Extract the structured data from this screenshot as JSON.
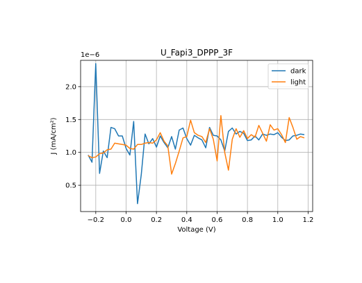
{
  "chart_data": {
    "type": "line",
    "title": "U_Fapi3_DPPP_3F",
    "xlabel": "Voltage (V)",
    "ylabel": "J (mA/cm²)",
    "offset_label": "1e−6",
    "xlim": [
      -0.3,
      1.23
    ],
    "ylim": [
      1e-07,
      2.4e-06
    ],
    "xticks": [
      -0.2,
      0.0,
      0.2,
      0.4,
      0.6,
      0.8,
      1.0,
      1.2
    ],
    "xtick_labels": [
      "−0.2",
      "0.0",
      "0.2",
      "0.4",
      "0.6",
      "0.8",
      "1.0",
      "1.2"
    ],
    "yticks": [
      5e-07,
      1e-06,
      1.5e-06,
      2e-06
    ],
    "ytick_labels": [
      "0.5",
      "1.0",
      "1.5",
      "2.0"
    ],
    "grid": true,
    "legend_position": "top-right",
    "series": [
      {
        "name": "dark",
        "color": "#1f77b4",
        "x": [
          -0.25,
          -0.225,
          -0.2,
          -0.175,
          -0.15,
          -0.125,
          -0.1,
          -0.075,
          -0.05,
          -0.025,
          0.0,
          0.025,
          0.05,
          0.075,
          0.1,
          0.125,
          0.15,
          0.175,
          0.2,
          0.225,
          0.25,
          0.275,
          0.3,
          0.325,
          0.35,
          0.375,
          0.4,
          0.425,
          0.45,
          0.475,
          0.5,
          0.525,
          0.55,
          0.575,
          0.6,
          0.625,
          0.65,
          0.675,
          0.7,
          0.725,
          0.75,
          0.775,
          0.8,
          0.825,
          0.85,
          0.875,
          0.9,
          0.925,
          0.95,
          0.975,
          1.0,
          1.025,
          1.05,
          1.075,
          1.1,
          1.125,
          1.15,
          1.175
        ],
        "y": [
          9.6e-07,
          8.5e-07,
          2.35e-06,
          6.8e-07,
          1.02e-06,
          9.2e-07,
          1.38e-06,
          1.36e-06,
          1.25e-06,
          1.25e-06,
          1.06e-06,
          9.6e-07,
          1.47e-06,
          2.2e-07,
          6.6e-07,
          1.28e-06,
          1.13e-06,
          1.21e-06,
          1.08e-06,
          1.25e-06,
          1.15e-06,
          1.07e-06,
          1.24e-06,
          1.05e-06,
          1.34e-06,
          1.37e-06,
          1.21e-06,
          1.11e-06,
          1.26e-06,
          1.22e-06,
          1.19e-06,
          1.07e-06,
          1.38e-06,
          1.26e-06,
          1.25e-06,
          1.19e-06,
          1.02e-06,
          1.32e-06,
          1.37e-06,
          1.28e-06,
          1.32e-06,
          1.29e-06,
          1.18e-06,
          1.19e-06,
          1.25e-06,
          1.19e-06,
          1.28e-06,
          1.26e-06,
          1.28e-06,
          1.27e-06,
          1.3e-06,
          1.23e-06,
          1.18e-06,
          1.19e-06,
          1.25e-06,
          1.26e-06,
          1.28e-06,
          1.27e-06
        ]
      },
      {
        "name": "light",
        "color": "#ff7f0e",
        "x": [
          -0.25,
          -0.225,
          -0.2,
          -0.175,
          -0.15,
          -0.125,
          -0.1,
          -0.075,
          -0.05,
          -0.025,
          0.0,
          0.025,
          0.05,
          0.075,
          0.1,
          0.125,
          0.15,
          0.175,
          0.2,
          0.225,
          0.25,
          0.275,
          0.3,
          0.325,
          0.35,
          0.375,
          0.4,
          0.425,
          0.45,
          0.475,
          0.5,
          0.525,
          0.55,
          0.575,
          0.6,
          0.625,
          0.65,
          0.675,
          0.7,
          0.725,
          0.75,
          0.775,
          0.8,
          0.825,
          0.85,
          0.875,
          0.9,
          0.925,
          0.95,
          0.975,
          1.0,
          1.025,
          1.05,
          1.075,
          1.1,
          1.125,
          1.15,
          1.175
        ],
        "y": [
          9.5e-07,
          9.2e-07,
          9.3e-07,
          9.8e-07,
          9.9e-07,
          1.04e-06,
          1.05e-06,
          1.14e-06,
          1.13e-06,
          1.12e-06,
          1.11e-06,
          1.06e-06,
          1.05e-06,
          1.12e-06,
          1.12e-06,
          1.14e-06,
          1.15e-06,
          1.14e-06,
          1.19e-06,
          1.3e-06,
          1.17e-06,
          1.1e-06,
          6.7e-07,
          8.3e-07,
          1.02e-06,
          1.22e-06,
          1.24e-06,
          1.49e-06,
          1.3e-06,
          1.26e-06,
          1.24e-06,
          1.15e-06,
          1.36e-06,
          1.2e-06,
          8.7e-07,
          1.56e-06,
          1e-06,
          7.3e-07,
          1.2e-06,
          1.36e-06,
          1.23e-06,
          1.33e-06,
          1.21e-06,
          1.27e-06,
          1.23e-06,
          1.41e-06,
          1.29e-06,
          1.17e-06,
          1.42e-06,
          1.34e-06,
          1.36e-06,
          1.27e-06,
          1.15e-06,
          1.53e-06,
          1.38e-06,
          1.2e-06,
          1.24e-06,
          1.22e-06
        ]
      }
    ]
  }
}
